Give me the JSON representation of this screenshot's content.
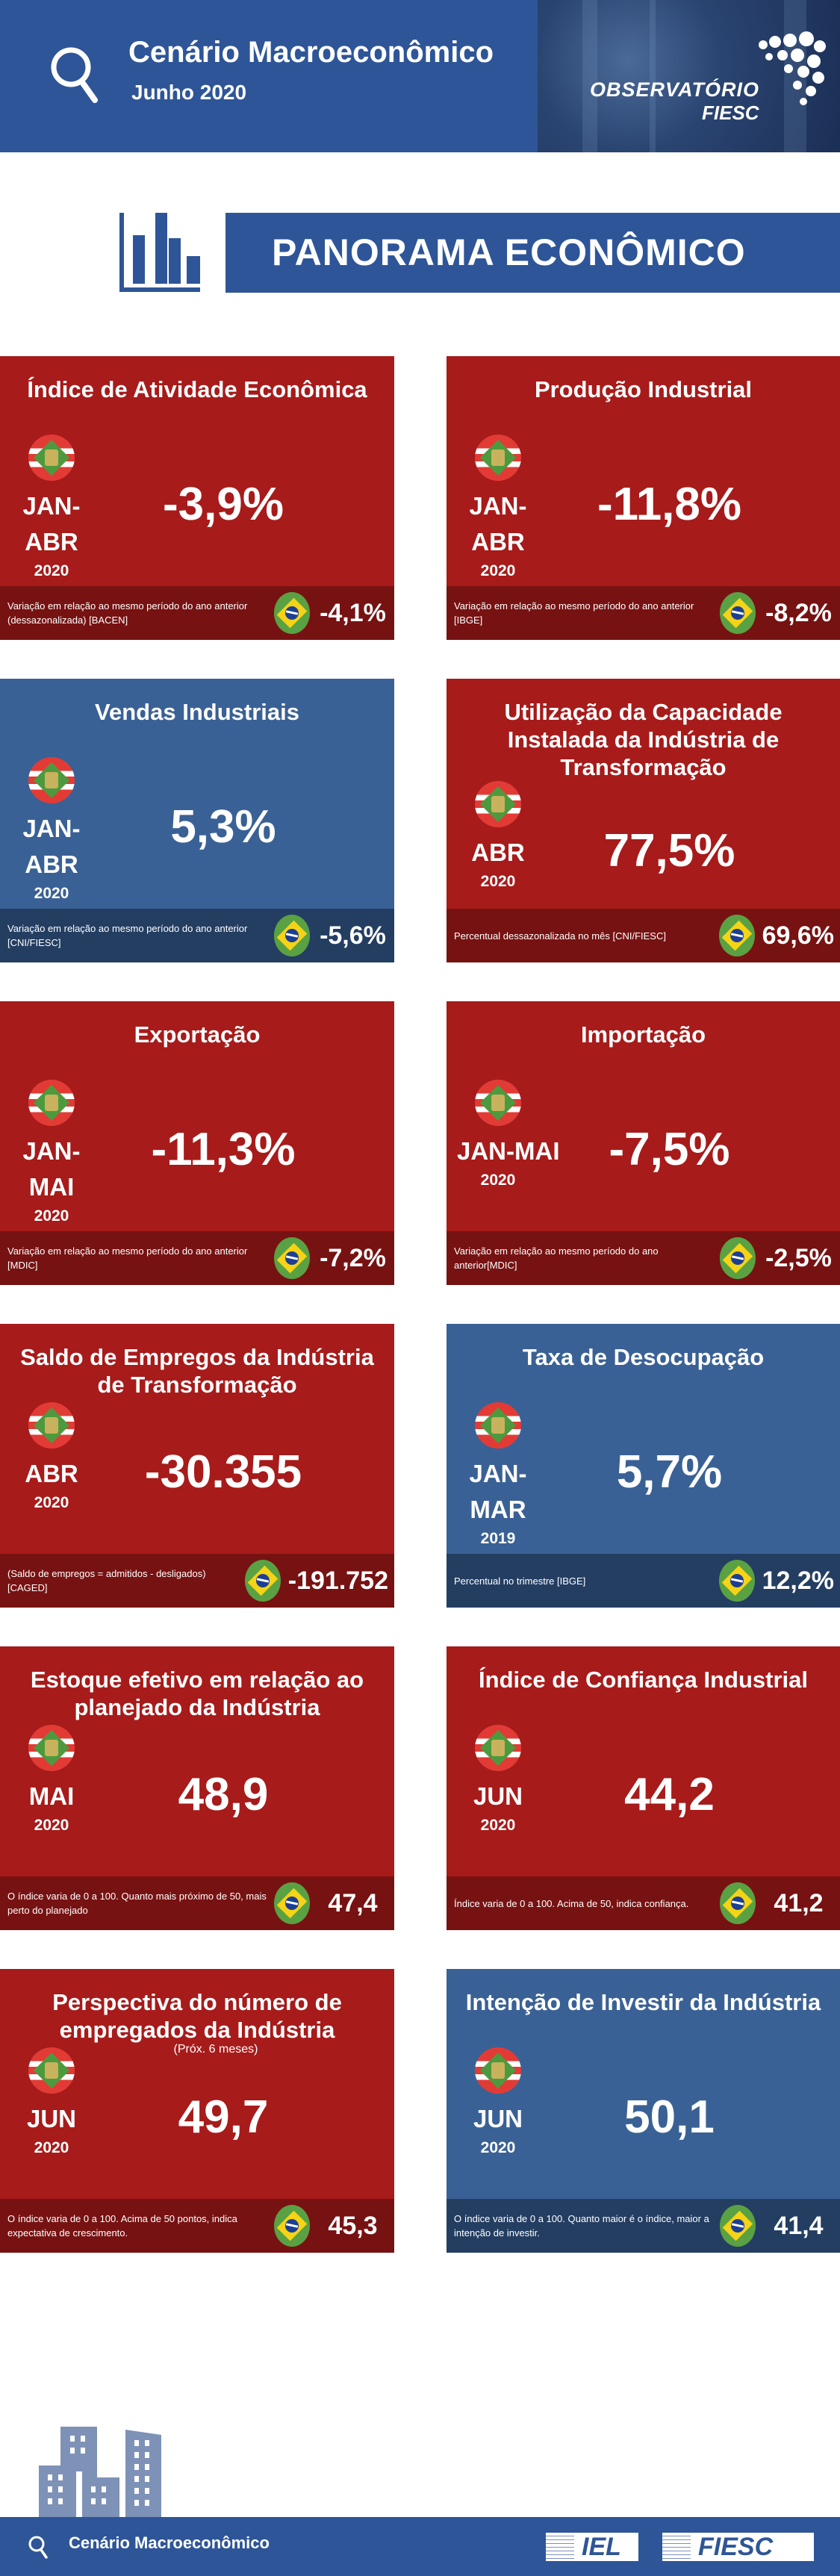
{
  "header": {
    "title": "Cenário Macroeconômico",
    "subtitle": "Junho 2020",
    "logo_text": "OBSERVATÓRIO",
    "logo_subtext": "FIESC",
    "color": "#2e5597"
  },
  "section": {
    "title": "PANORAMA ECONÔMICO",
    "icon": "bar-chart-icon"
  },
  "colors": {
    "red": "#a71b1b",
    "red_dark": "#771212",
    "blue": "#3a6195",
    "blue_dark": "#243e62"
  },
  "cards": [
    {
      "theme": "red",
      "title": "Índice de Atividade Econômica",
      "period": [
        "JAN-",
        "ABR"
      ],
      "year": "2020",
      "value": "-3,9%",
      "note": "Variação em relação ao mesmo período do ano anterior (dessazonalizada) [BACEN]",
      "brazil_value": "-4,1%"
    },
    {
      "theme": "red",
      "title": "Produção Industrial",
      "period": [
        "JAN-",
        "ABR"
      ],
      "year": "2020",
      "value": "-11,8%",
      "note": "Variação em relação ao mesmo período do ano anterior [IBGE]",
      "brazil_value": "-8,2%"
    },
    {
      "theme": "blue",
      "title": "Vendas Industriais",
      "period": [
        "JAN-",
        "ABR"
      ],
      "year": "2020",
      "value": "5,3%",
      "note": "Variação em relação ao mesmo período do ano anterior [CNI/FIESC]",
      "brazil_value": "-5,6%"
    },
    {
      "theme": "red",
      "title": "Utilização da Capacidade Instalada da Indústria de Transformação",
      "period": [
        "ABR"
      ],
      "year": "2020",
      "value": "77,5%",
      "note": "Percentual dessazonalizada no mês [CNI/FIESC]",
      "brazil_value": "69,6%"
    },
    {
      "theme": "red",
      "title": "Exportação",
      "period": [
        "JAN-",
        "MAI"
      ],
      "year": "2020",
      "value": "-11,3%",
      "note": "Variação em relação ao mesmo período do ano anterior [MDIC]",
      "brazil_value": "-7,2%"
    },
    {
      "theme": "red",
      "title": "Importação",
      "period": [
        "JAN-MAI"
      ],
      "year": "2020",
      "value": "-7,5%",
      "note": "Variação em relação ao mesmo período do ano anterior[MDIC]",
      "brazil_value": "-2,5%"
    },
    {
      "theme": "red",
      "title": "Saldo de Empregos da Indústria de Transformação",
      "period": [
        "ABR"
      ],
      "year": "2020",
      "value": "-30.355",
      "note": "(Saldo de empregos = admitidos - desligados) [CAGED]",
      "brazil_value": "-191.752"
    },
    {
      "theme": "blue",
      "title": "Taxa de Desocupação",
      "period": [
        "JAN-",
        "MAR"
      ],
      "year": "2019",
      "value": "5,7%",
      "note": "Percentual no trimestre [IBGE]",
      "brazil_value": "12,2%"
    },
    {
      "theme": "red",
      "title": "Estoque efetivo em relação ao planejado da Indústria",
      "period": [
        "MAI"
      ],
      "year": "2020",
      "value": "48,9",
      "note": "O índice varia de 0 a 100. Quanto mais próximo de 50, mais perto do planejado",
      "brazil_value": "47,4"
    },
    {
      "theme": "red",
      "title": "Índice de Confiança Industrial",
      "period": [
        "JUN"
      ],
      "year": "2020",
      "value": "44,2",
      "note": "Índice varia de 0 a 100. Acima de 50, indica confiança.",
      "brazil_value": "41,2"
    },
    {
      "theme": "red",
      "title": "Perspectiva do número de empregados da Indústria",
      "subnote": "(Próx. 6 meses)",
      "period": [
        "JUN"
      ],
      "year": "2020",
      "value": "49,7",
      "note": "O índice varia de 0 a 100. Acima de 50 pontos, indica expectativa de crescimento.",
      "brazil_value": "45,3"
    },
    {
      "theme": "blue",
      "title": "Intenção de Investir da Indústria",
      "period": [
        "JUN"
      ],
      "year": "2020",
      "value": "50,1",
      "note": "O índice varia de 0 a 100. Quanto maior é o índice, maior a intenção de investir.",
      "brazil_value": "41,4"
    }
  ],
  "footer": {
    "title": "Cenário Macroeconômico",
    "logos": [
      "IEL",
      "FIESC"
    ]
  }
}
